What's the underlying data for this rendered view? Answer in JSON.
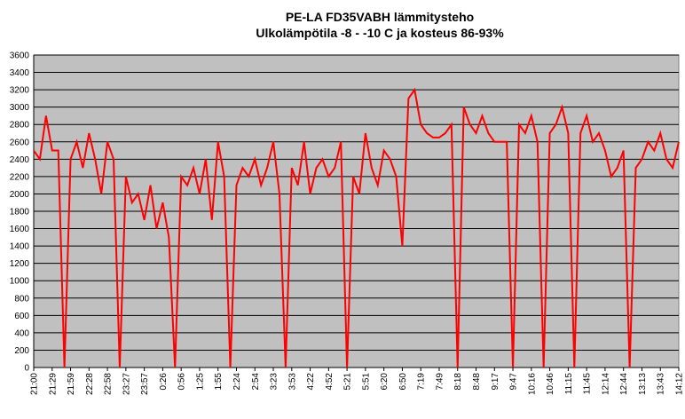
{
  "chart_data": {
    "type": "line",
    "title": "PE-LA FD35VABH lämmitysteho",
    "subtitle": "Ulkolämpötila  -8 - -10 C ja kosteus 86-93%",
    "categories": [
      "21:00",
      null,
      null,
      "21:29",
      null,
      null,
      "21:59",
      null,
      null,
      "22:28",
      null,
      null,
      "22:58",
      null,
      null,
      "23:27",
      null,
      null,
      "23:57",
      null,
      null,
      "0:26",
      null,
      null,
      "0:56",
      null,
      null,
      "1:25",
      null,
      null,
      "1:55",
      null,
      null,
      "2:24",
      null,
      null,
      "2:54",
      null,
      null,
      "3:23",
      null,
      null,
      "3:53",
      null,
      null,
      "4:22",
      null,
      null,
      "4:52",
      null,
      null,
      "5:21",
      null,
      null,
      "5:51",
      null,
      null,
      "6:20",
      null,
      null,
      "6:50",
      null,
      null,
      "7:19",
      null,
      null,
      "7:49",
      null,
      null,
      "8:18",
      null,
      null,
      "8:48",
      null,
      null,
      "9:17",
      null,
      null,
      "9:47",
      null,
      null,
      "10:16",
      null,
      null,
      "10:46",
      null,
      null,
      "11:15",
      null,
      null,
      "11:45",
      null,
      null,
      "12:14",
      null,
      null,
      "12:44",
      null,
      null,
      "13:13",
      null,
      null,
      "13:43",
      null,
      null,
      "14:12"
    ],
    "series": [
      {
        "color": "#ff0000",
        "values": [
          2500,
          2400,
          2900,
          2500,
          2500,
          0,
          2400,
          2600,
          2300,
          2700,
          2400,
          2000,
          2600,
          2400,
          0,
          2200,
          1900,
          2000,
          1700,
          2100,
          1600,
          1900,
          1500,
          0,
          2200,
          2100,
          2300,
          2000,
          2400,
          1700,
          2600,
          2200,
          0,
          2100,
          2300,
          2200,
          2400,
          2100,
          2300,
          2600,
          2000,
          0,
          2300,
          2100,
          2600,
          2000,
          2300,
          2400,
          2200,
          2300,
          2600,
          0,
          2200,
          2000,
          2700,
          2300,
          2100,
          2500,
          2400,
          2200,
          1400,
          3100,
          3200,
          2800,
          2700,
          2650,
          2650,
          2700,
          2800,
          0,
          3000,
          2800,
          2700,
          2900,
          2700,
          2600,
          2600,
          2600,
          0,
          2800,
          2700,
          2900,
          2600,
          0,
          2700,
          2800,
          3000,
          2700,
          0,
          2700,
          2900,
          2600,
          2700,
          2500,
          2200,
          2300,
          2500,
          0,
          2300,
          2400,
          2600,
          2500,
          2700,
          2400,
          2300,
          2600
        ]
      }
    ],
    "ylim": [
      0,
      3600
    ],
    "yticks": [
      0,
      200,
      400,
      600,
      800,
      1000,
      1200,
      1400,
      1600,
      1800,
      2000,
      2200,
      2400,
      2600,
      2800,
      3000,
      3200,
      3400,
      3600
    ],
    "grid": true
  }
}
